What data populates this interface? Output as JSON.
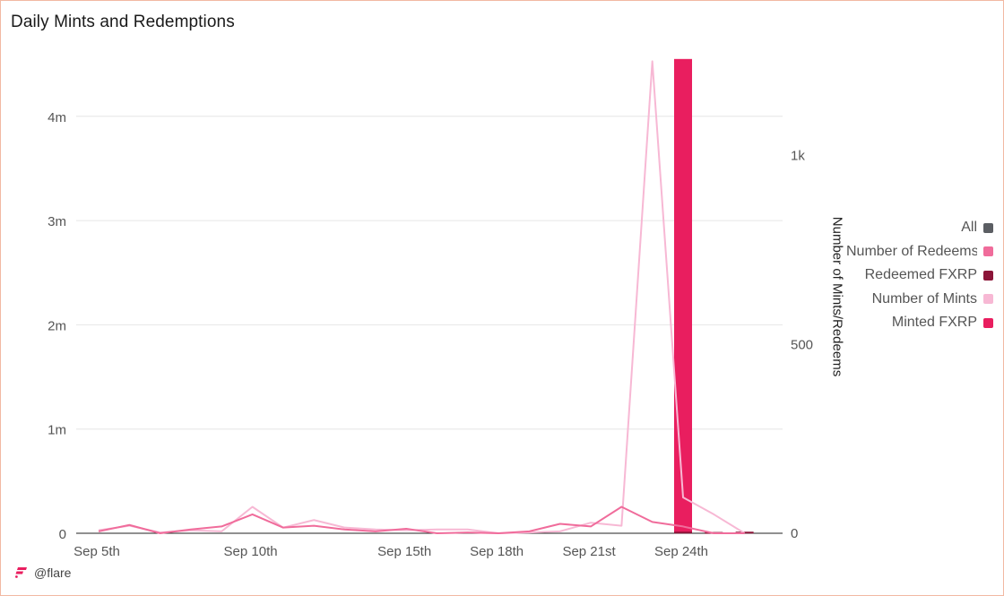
{
  "title": "Daily Mints and Redemptions",
  "brand": "@flare",
  "colors": {
    "all": "#5b5e63",
    "number_of_redeems": "#f06c9b",
    "redeemed_fxrp": "#8b1538",
    "number_of_mints": "#f7b8d4",
    "minted_fxrp": "#e91e5f"
  },
  "legend": [
    {
      "label": "All",
      "color": "#5b5e63"
    },
    {
      "label": "Number of Redeems",
      "color": "#f06c9b"
    },
    {
      "label": "Redeemed FXRP",
      "color": "#8b1538"
    },
    {
      "label": "Number of Mints",
      "color": "#f7b8d4"
    },
    {
      "label": "Minted FXRP",
      "color": "#e91e5f"
    }
  ],
  "chart_data": {
    "type": "bar",
    "title": "Daily Mints and Redemptions",
    "x": [
      "Sep 5th",
      "Sep 6th",
      "Sep 7th",
      "Sep 8th",
      "Sep 9th",
      "Sep 10th",
      "Sep 11th",
      "Sep 12th",
      "Sep 13th",
      "Sep 14th",
      "Sep 15th",
      "Sep 16th",
      "Sep 17th",
      "Sep 18th",
      "Sep 19th",
      "Sep 20th",
      "Sep 21st",
      "Sep 22nd",
      "Sep 23rd",
      "Sep 24th",
      "Sep 25th",
      "Sep 26th"
    ],
    "xticks": [
      "Sep 5th",
      "Sep 10th",
      "Sep 15th",
      "Sep 18th",
      "Sep 21st",
      "Sep 24th"
    ],
    "xtick_index": [
      0,
      5,
      10,
      13,
      16,
      19
    ],
    "y_left": {
      "ticks": [
        "0",
        "1m",
        "2m",
        "3m",
        "4m"
      ],
      "tick_values": [
        0,
        1000000,
        2000000,
        3000000,
        4000000
      ],
      "range": [
        0,
        4600000
      ]
    },
    "y_right": {
      "label": "Number of Mints/Redeems",
      "ticks": [
        "0",
        "500",
        "1k"
      ],
      "tick_values": [
        0,
        500,
        1000
      ],
      "range": [
        0,
        1270
      ]
    },
    "series": [
      {
        "name": "Minted FXRP",
        "kind": "bar",
        "axis": "left",
        "color": "#e91e5f",
        "values": [
          0,
          0,
          0,
          0,
          0,
          0,
          0,
          0,
          0,
          0,
          0,
          0,
          0,
          0,
          0,
          0,
          0,
          0,
          0,
          4550000,
          0,
          0
        ]
      },
      {
        "name": "Redeemed FXRP",
        "kind": "bar",
        "axis": "left",
        "color": "#8b1538",
        "values": [
          0,
          0,
          0,
          0,
          0,
          0,
          0,
          0,
          0,
          0,
          0,
          0,
          0,
          0,
          0,
          0,
          0,
          0,
          0,
          15000,
          12000,
          15000
        ]
      },
      {
        "name": "Number of Mints",
        "kind": "line",
        "axis": "right",
        "color": "#f7b8d4",
        "values": [
          8,
          20,
          2,
          8,
          5,
          70,
          15,
          35,
          15,
          10,
          8,
          10,
          10,
          0,
          2,
          5,
          28,
          20,
          1250,
          95,
          50,
          0
        ]
      },
      {
        "name": "Number of Redeems",
        "kind": "line",
        "axis": "right",
        "color": "#f06c9b",
        "values": [
          5,
          22,
          0,
          10,
          18,
          50,
          15,
          20,
          10,
          5,
          12,
          0,
          2,
          0,
          5,
          25,
          18,
          70,
          30,
          18,
          0,
          0
        ]
      }
    ]
  }
}
